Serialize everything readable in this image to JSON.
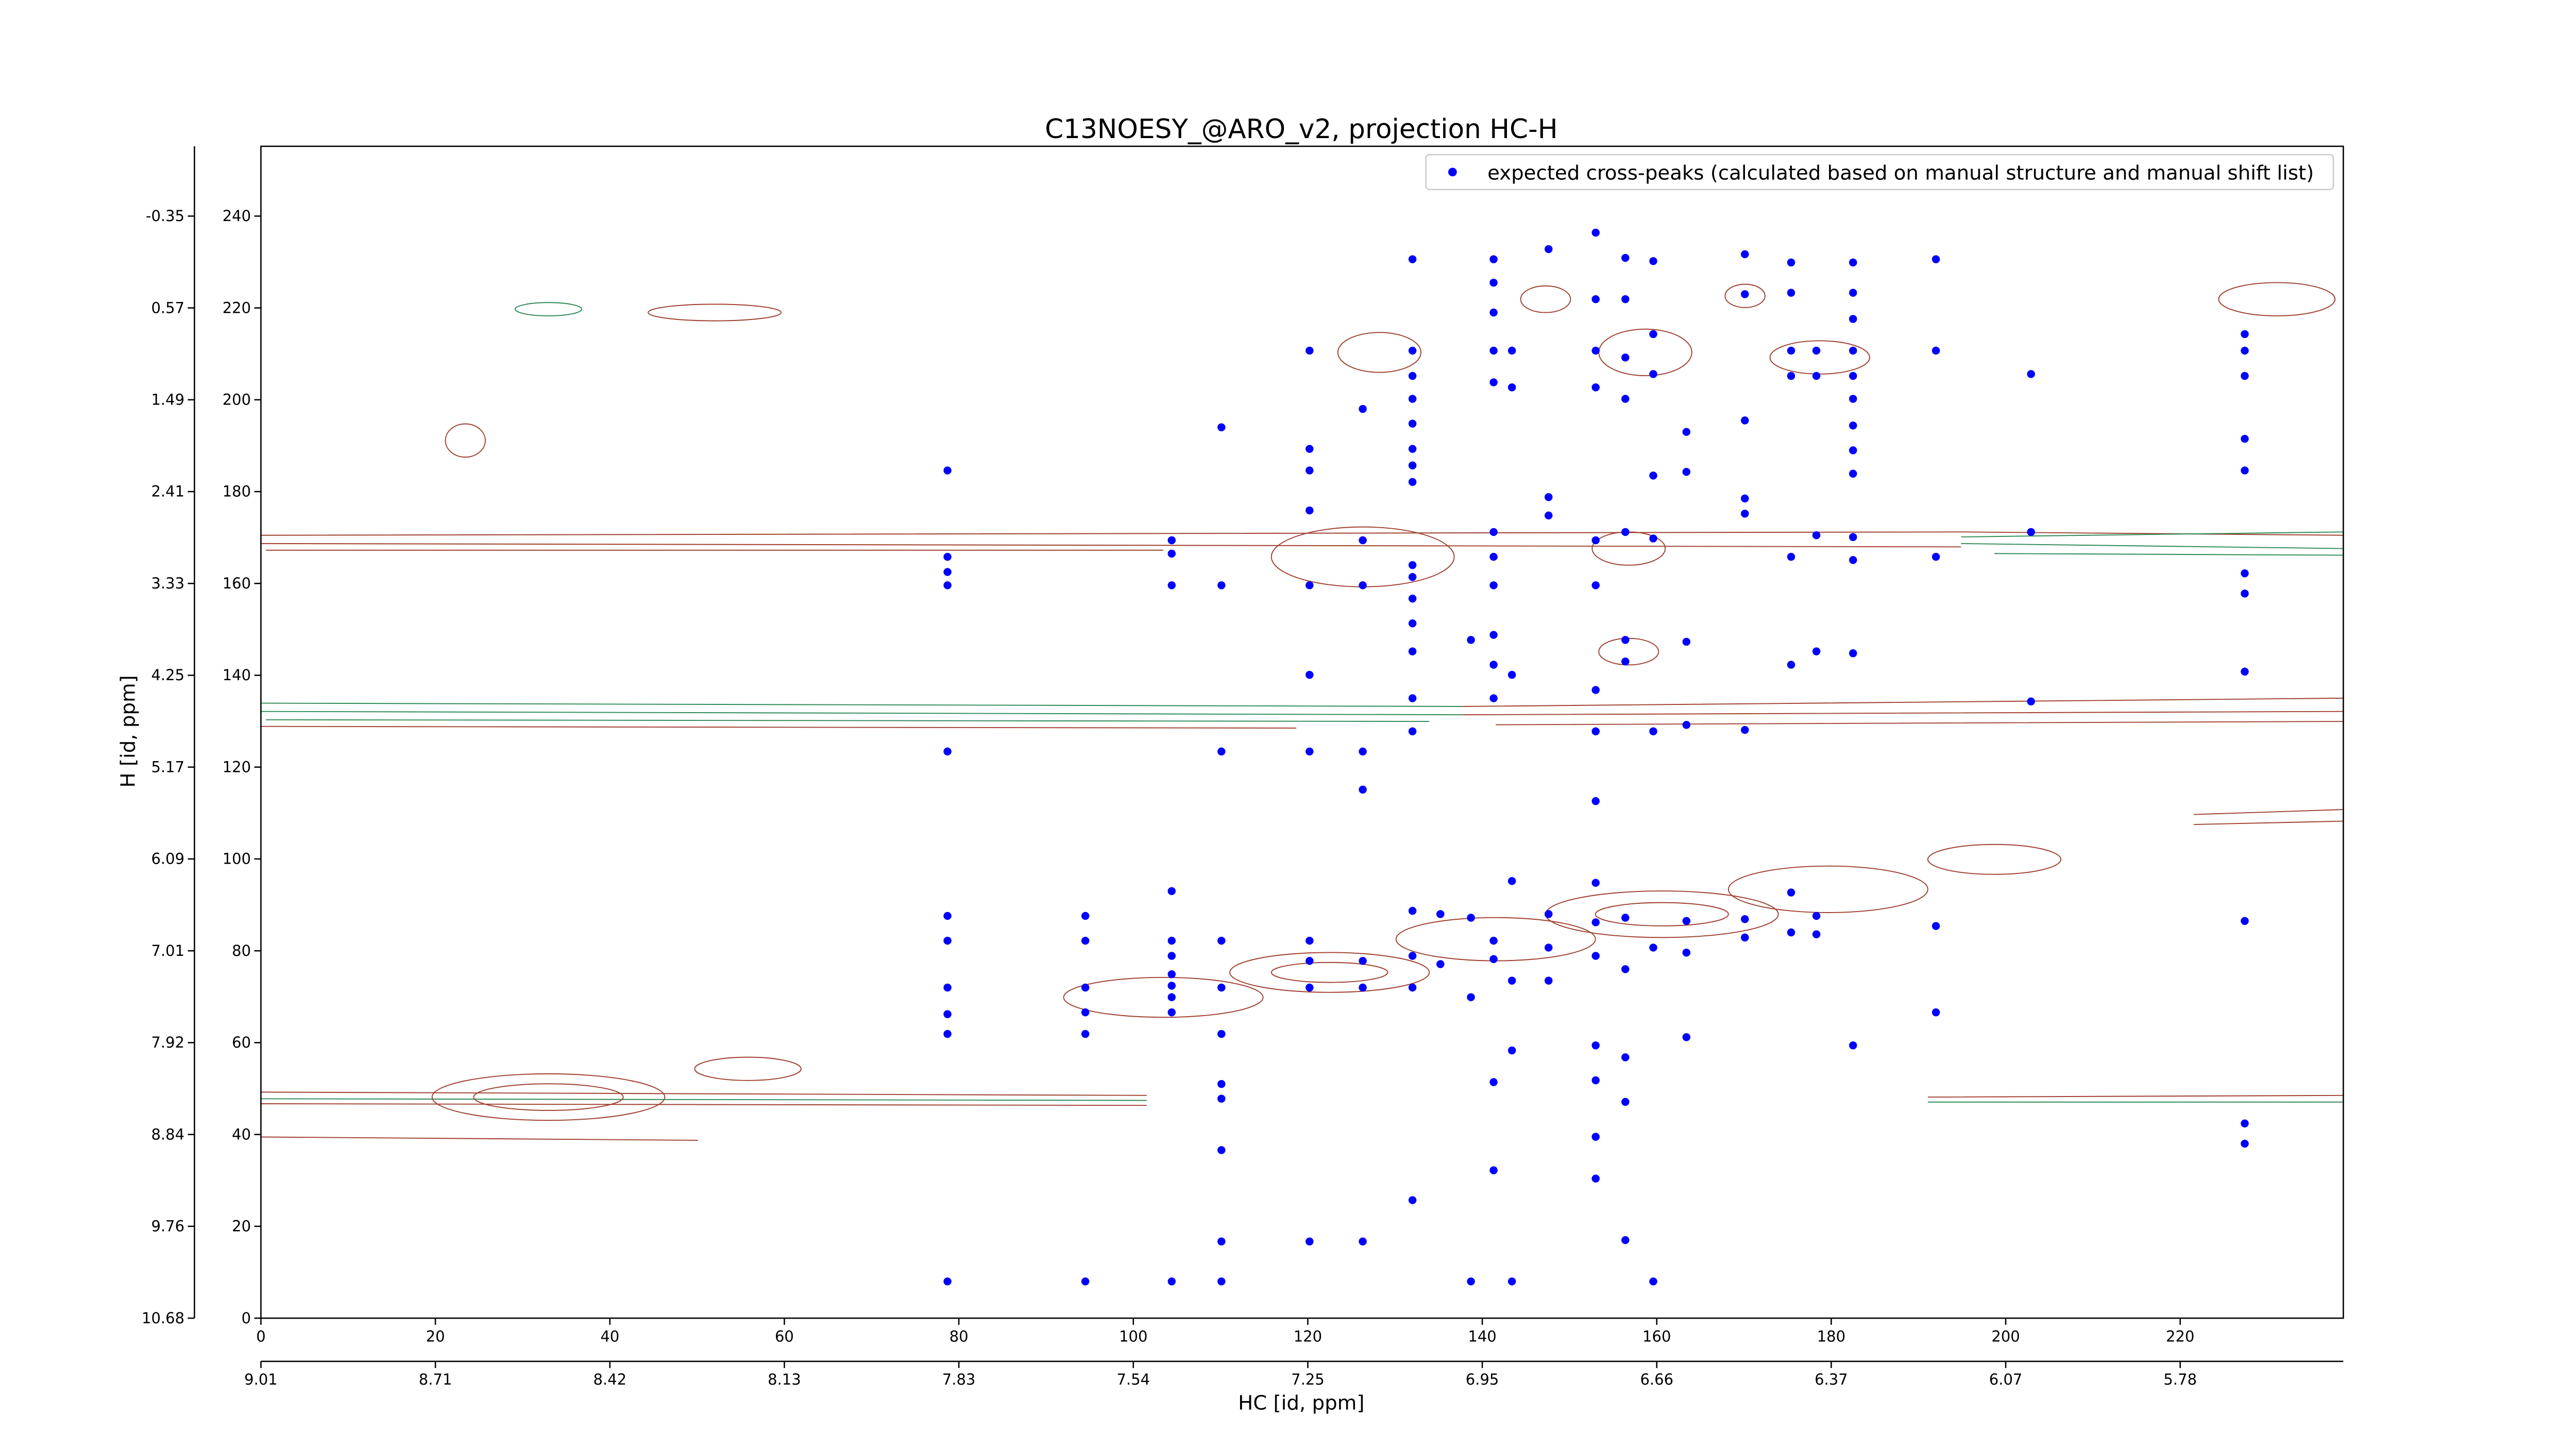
{
  "chart_data": {
    "type": "scatter",
    "title": "C13NOESY_@ARO_v2, projection HC-H",
    "x_label": "HC [id, ppm]",
    "y_label": "H [id, ppm]",
    "legend_loc": "upper right",
    "xlim": [
      0,
      238.7
    ],
    "ylim": [
      0,
      255.2
    ],
    "xticks": [
      0,
      20,
      40,
      60,
      80,
      100,
      120,
      140,
      160,
      180,
      200,
      220
    ],
    "yticks": [
      0,
      20,
      40,
      60,
      80,
      100,
      120,
      140,
      160,
      180,
      200,
      220,
      240
    ],
    "xticks_ppm": [
      {
        "value": 0,
        "label": "9.01"
      },
      {
        "value": 20,
        "label": "8.71"
      },
      {
        "value": 40,
        "label": "8.42"
      },
      {
        "value": 60,
        "label": "8.13"
      },
      {
        "value": 80,
        "label": "7.83"
      },
      {
        "value": 100,
        "label": "7.54"
      },
      {
        "value": 120,
        "label": "7.25"
      },
      {
        "value": 140,
        "label": "6.95"
      },
      {
        "value": 160,
        "label": "6.66"
      },
      {
        "value": 180,
        "label": "6.37"
      },
      {
        "value": 200,
        "label": "6.07"
      },
      {
        "value": 220,
        "label": "5.78"
      }
    ],
    "yticks_ppm": [
      {
        "value": 0,
        "label": "10.68"
      },
      {
        "value": 20,
        "label": "9.76"
      },
      {
        "value": 40,
        "label": "8.84"
      },
      {
        "value": 60,
        "label": "7.92"
      },
      {
        "value": 80,
        "label": "7.01"
      },
      {
        "value": 100,
        "label": "6.09"
      },
      {
        "value": 120,
        "label": "5.17"
      },
      {
        "value": 140,
        "label": "4.25"
      },
      {
        "value": 160,
        "label": "3.33"
      },
      {
        "value": 180,
        "label": "2.41"
      },
      {
        "value": 200,
        "label": "1.49"
      },
      {
        "value": 220,
        "label": "0.57"
      },
      {
        "value": 240,
        "label": "-0.35"
      }
    ],
    "series": [
      {
        "name": "expected cross-peaks (calculated based on manual structure and manual shift list)",
        "color": "#0000ff",
        "x": [
          78.7,
          78.7,
          78.7,
          78.7,
          78.7,
          78.7,
          78.7,
          78.7,
          78.7,
          78.7,
          78.7,
          94.5,
          94.5,
          94.5,
          94.5,
          94.5,
          94.5,
          104.4,
          104.4,
          104.4,
          104.4,
          104.4,
          104.4,
          104.4,
          104.4,
          104.4,
          104.4,
          104.4,
          110.1,
          110.1,
          110.1,
          110.1,
          110.1,
          110.1,
          110.1,
          110.1,
          110.1,
          110.1,
          110.1,
          120.2,
          120.2,
          120.2,
          120.2,
          120.2,
          120.2,
          120.2,
          120.2,
          120.2,
          120.2,
          120.2,
          126.3,
          126.3,
          126.3,
          126.3,
          126.3,
          126.3,
          126.3,
          126.3,
          132.0,
          132.0,
          132.0,
          132.0,
          132.0,
          132.0,
          132.0,
          132.0,
          132.0,
          132.0,
          132.0,
          132.0,
          132.0,
          132.0,
          132.0,
          132.0,
          132.0,
          132.0,
          132.0,
          135.2,
          135.2,
          138.7,
          138.7,
          138.7,
          138.7,
          141.3,
          141.3,
          141.3,
          141.3,
          141.3,
          141.3,
          141.3,
          141.3,
          141.3,
          141.3,
          141.3,
          141.3,
          141.3,
          141.3,
          141.3,
          143.4,
          143.4,
          143.4,
          143.4,
          143.4,
          143.4,
          143.4,
          147.6,
          147.6,
          147.6,
          147.6,
          147.6,
          147.6,
          153.0,
          153.0,
          153.0,
          153.0,
          153.0,
          153.0,
          153.0,
          153.0,
          153.0,
          153.0,
          153.0,
          153.0,
          153.0,
          153.0,
          153.0,
          153.0,
          156.4,
          156.4,
          156.4,
          156.4,
          156.4,
          156.4,
          156.4,
          156.4,
          156.4,
          156.4,
          156.4,
          156.4,
          159.6,
          159.6,
          159.6,
          159.6,
          159.6,
          159.6,
          159.6,
          159.6,
          163.4,
          163.4,
          163.4,
          163.4,
          163.4,
          163.4,
          163.4,
          170.1,
          170.1,
          170.1,
          170.1,
          170.1,
          170.1,
          170.1,
          170.1,
          175.4,
          175.4,
          175.4,
          175.4,
          175.4,
          175.4,
          175.4,
          175.4,
          178.3,
          178.3,
          178.3,
          178.3,
          178.3,
          178.3,
          182.5,
          182.5,
          182.5,
          182.5,
          182.5,
          182.5,
          182.5,
          182.5,
          182.5,
          182.5,
          182.5,
          182.5,
          182.5,
          192.0,
          192.0,
          192.0,
          192.0,
          192.0,
          202.9,
          202.9,
          202.9,
          227.4,
          227.4,
          227.4,
          227.4,
          227.4,
          227.4,
          227.4,
          227.4,
          227.4,
          227.4,
          227.4
        ],
        "values": [
          184.6,
          165.8,
          162.5,
          159.6,
          123.4,
          87.6,
          82.2,
          72.0,
          66.2,
          61.9,
          8.0,
          87.6,
          82.2,
          72.0,
          66.6,
          61.9,
          8.0,
          169.4,
          166.5,
          159.6,
          93.0,
          82.2,
          78.9,
          74.9,
          72.4,
          69.9,
          66.6,
          8.0,
          194.0,
          159.6,
          123.4,
          82.2,
          72.0,
          61.9,
          51.0,
          47.8,
          36.6,
          16.7,
          8.0,
          210.7,
          189.3,
          184.6,
          175.9,
          159.6,
          140.1,
          123.4,
          82.2,
          77.8,
          72.0,
          16.7,
          198.0,
          169.4,
          159.6,
          123.4,
          115.1,
          77.8,
          72.0,
          16.7,
          230.6,
          210.7,
          205.2,
          200.2,
          194.8,
          189.3,
          185.7,
          182.1,
          164.0,
          161.4,
          156.7,
          151.3,
          145.2,
          135.0,
          127.8,
          88.7,
          78.9,
          72.0,
          25.7,
          77.1,
          88.0,
          147.7,
          87.2,
          69.9,
          8.0,
          230.6,
          225.5,
          219.0,
          210.7,
          203.8,
          171.2,
          165.8,
          159.6,
          148.8,
          142.3,
          135.0,
          82.2,
          78.2,
          51.4,
          32.2,
          210.7,
          202.7,
          140.1,
          95.2,
          73.5,
          58.3,
          8.0,
          232.8,
          178.8,
          174.8,
          88.0,
          80.7,
          73.5,
          236.4,
          221.9,
          210.7,
          202.7,
          169.4,
          159.6,
          136.8,
          127.8,
          112.6,
          94.8,
          86.2,
          78.9,
          59.4,
          51.8,
          39.5,
          30.4,
          230.9,
          221.9,
          209.2,
          200.2,
          171.2,
          147.7,
          143.0,
          87.2,
          76.0,
          56.8,
          47.1,
          17.0,
          230.2,
          214.3,
          205.6,
          183.5,
          169.8,
          127.8,
          80.7,
          8.0,
          193.0,
          184.3,
          147.3,
          129.2,
          86.5,
          79.6,
          61.2,
          231.7,
          223.0,
          195.5,
          178.5,
          175.2,
          128.1,
          86.9,
          82.9,
          229.9,
          223.3,
          210.7,
          205.2,
          165.8,
          142.3,
          92.7,
          84.0,
          210.7,
          205.2,
          170.5,
          145.2,
          87.6,
          83.6,
          229.9,
          223.3,
          217.6,
          210.7,
          205.2,
          200.2,
          194.4,
          189.0,
          183.9,
          170.1,
          165.1,
          144.8,
          59.4,
          230.6,
          210.7,
          165.8,
          85.4,
          66.6,
          205.6,
          171.2,
          134.3,
          214.3,
          210.7,
          205.2,
          191.5,
          184.6,
          162.2,
          157.8,
          140.8,
          86.5,
          42.4,
          38.0
        ]
      }
    ]
  }
}
